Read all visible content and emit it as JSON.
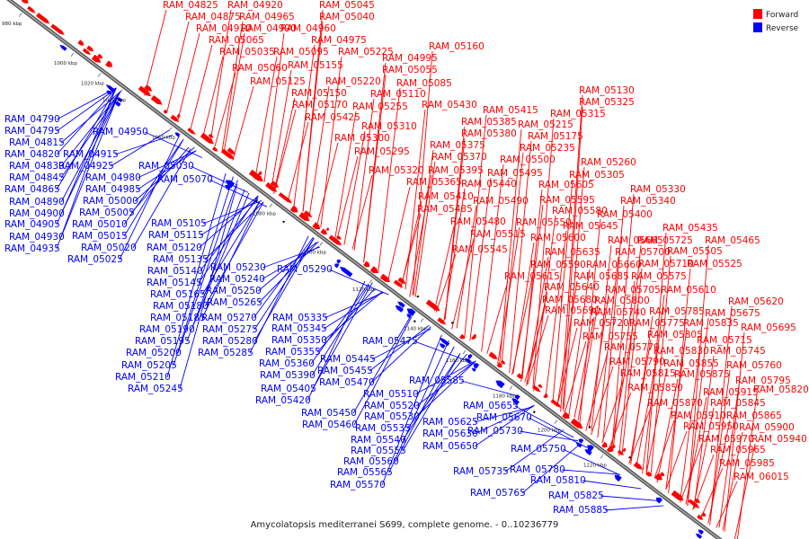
{
  "caption": "Amycolatopsis mediterranei S699, complete genome. - 0..10236779",
  "legend": {
    "items": [
      {
        "label": "Forward",
        "color": "#ff0000"
      },
      {
        "label": "Reverse",
        "color": "#0000ff"
      }
    ]
  },
  "colors": {
    "forward": "#ff0000",
    "reverse": "#0000ff",
    "backbone": "#6e6e6e"
  },
  "ticks": [
    "980 kbp",
    "1000 kbp",
    "1020 kbp",
    "1040 kbp",
    "1060 kbp",
    "1080 kbp",
    "1100 kbp",
    "1120 kbp",
    "1140 kbp",
    "1160 kbp",
    "1180 kbp",
    "1200 kbp",
    "1220 kbp"
  ],
  "forward_labels": [
    "RAM_04825",
    "RAM_04920",
    "RAM_05045",
    "RAM_04875",
    "RAM_04965",
    "RAM_05040",
    "RAM_04910",
    "RAM_04990",
    "RAM_04960",
    "RAM_05065",
    "RAM_04975",
    "RAM_05035",
    "RAM_05095",
    "RAM_05225",
    "RAM_05160",
    "RAM_04995",
    "RAM_05060",
    "RAM_05155",
    "RAM_05055",
    "RAM_05125",
    "RAM_05220",
    "RAM_05085",
    "RAM_05150",
    "RAM_05110",
    "RAM_05170",
    "RAM_05255",
    "RAM_05430",
    "RAM_05130",
    "RAM_05425",
    "RAM_05325",
    "RAM_05415",
    "RAM_05315",
    "RAM_05385",
    "RAM_05215",
    "RAM_05310",
    "RAM_05380",
    "RAM_05175",
    "RAM_05300",
    "RAM_05375",
    "RAM_05235",
    "RAM_05295",
    "RAM_05370",
    "RAM_05500",
    "RAM_05260",
    "RAM_05320",
    "RAM_05395",
    "RAM_05495",
    "RAM_05305",
    "RAM_05365",
    "RAM_05440",
    "RAM_05605",
    "RAM_05330",
    "RAM_05410",
    "RAM_05490",
    "RAM_05595",
    "RAM_05340",
    "RAM_05485",
    "RAM_05580",
    "RAM_05400",
    "RAM_05480",
    "RAM_05550",
    "RAM_05645",
    "RAM_05435",
    "RAM_05515",
    "RAM_05600",
    "RAM_05665",
    "RAM_05725",
    "RAM_05465",
    "RAM_05545",
    "RAM_05635",
    "RAM_05700",
    "RAM_05505",
    "RAM_05590",
    "RAM_05660",
    "RAM_05710",
    "RAM_05525",
    "RAM_05615",
    "RAM_05685",
    "RAM_05575",
    "RAM_05640",
    "RAM_05705",
    "RAM_05610",
    "RAM_05680",
    "RAM_05800",
    "RAM_05620",
    "RAM_05690",
    "RAM_05740",
    "RAM_05785",
    "RAM_05675",
    "RAM_05720",
    "RAM_05775",
    "RAM_05835",
    "RAM_05695",
    "RAM_05755",
    "RAM_05805",
    "RAM_05715",
    "RAM_05770",
    "RAM_05830",
    "RAM_05745",
    "RAM_05790",
    "RAM_05855",
    "RAM_05760",
    "RAM_05815",
    "RAM_05875",
    "RAM_05795",
    "RAM_05850",
    "RAM_05915",
    "RAM_05820",
    "RAM_05870",
    "RAM_05845",
    "RAM_05910",
    "RAM_05865",
    "RAM_05950",
    "RAM_05900",
    "RAM_05970",
    "RAM_05940",
    "RAM_05965",
    "RAM_05985",
    "RAM_06015"
  ],
  "reverse_labels": [
    "RAM_04790",
    "RAM_04795",
    "RAM_04950",
    "RAM_04815",
    "RAM_04820",
    "RAM_04915",
    "RAM_04830",
    "RAM_04925",
    "RAM_05030",
    "RAM_04845",
    "RAM_04980",
    "RAM_05070",
    "RAM_04865",
    "RAM_04985",
    "RAM_04890",
    "RAM_05000",
    "RAM_04900",
    "RAM_05005",
    "RAM_04905",
    "RAM_05010",
    "RAM_04930",
    "RAM_05015",
    "RAM_04935",
    "RAM_05020",
    "RAM_05025",
    "RAM_05105",
    "RAM_05115",
    "RAM_05120",
    "RAM_05135",
    "RAM_05230",
    "RAM_05290",
    "RAM_05140",
    "RAM_05240",
    "RAM_05145",
    "RAM_05250",
    "RAM_05165",
    "RAM_05265",
    "RAM_05180",
    "RAM_05185",
    "RAM_05270",
    "RAM_05335",
    "RAM_05190",
    "RAM_05275",
    "RAM_05345",
    "RAM_05195",
    "RAM_05280",
    "RAM_05350",
    "RAM_05475",
    "RAM_05200",
    "RAM_05285",
    "RAM_05355",
    "RAM_05205",
    "RAM_05445",
    "RAM_05360",
    "RAM_05455",
    "RAM_05210",
    "RAM_05390",
    "RAM_05470",
    "RAM_05585",
    "RAM_05245",
    "RAM_05405",
    "RAM_05510",
    "RAM_05420",
    "RAM_05520",
    "RAM_05655",
    "RAM_05450",
    "RAM_05530",
    "RAM_05670",
    "RAM_05460",
    "RAM_05535",
    "RAM_05625",
    "RAM_05540",
    "RAM_05630",
    "RAM_05730",
    "RAM_05555",
    "RAM_05650",
    "RAM_05560",
    "RAM_05750",
    "RAM_05565",
    "RAM_05735",
    "RAM_05780",
    "RAM_05570",
    "RAM_05810",
    "RAM_05765",
    "RAM_05825",
    "RAM_05885"
  ]
}
